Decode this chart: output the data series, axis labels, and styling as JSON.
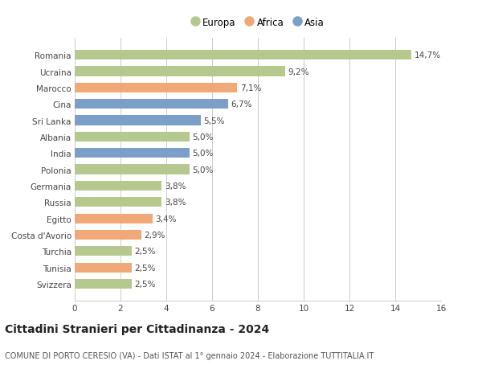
{
  "categories": [
    "Romania",
    "Ucraina",
    "Marocco",
    "Cina",
    "Sri Lanka",
    "Albania",
    "India",
    "Polonia",
    "Germania",
    "Russia",
    "Egitto",
    "Costa d'Avorio",
    "Turchia",
    "Tunisia",
    "Svizzera"
  ],
  "values": [
    14.7,
    9.2,
    7.1,
    6.7,
    5.5,
    5.0,
    5.0,
    5.0,
    3.8,
    3.8,
    3.4,
    2.9,
    2.5,
    2.5,
    2.5
  ],
  "labels": [
    "14,7%",
    "9,2%",
    "7,1%",
    "6,7%",
    "5,5%",
    "5,0%",
    "5,0%",
    "5,0%",
    "3,8%",
    "3,8%",
    "3,4%",
    "2,9%",
    "2,5%",
    "2,5%",
    "2,5%"
  ],
  "continent": [
    "Europa",
    "Europa",
    "Africa",
    "Asia",
    "Asia",
    "Europa",
    "Asia",
    "Europa",
    "Europa",
    "Europa",
    "Africa",
    "Africa",
    "Europa",
    "Africa",
    "Europa"
  ],
  "colors": {
    "Europa": "#b5c98e",
    "Africa": "#f0a878",
    "Asia": "#7b9fc8"
  },
  "xlim": [
    0,
    16
  ],
  "xticks": [
    0,
    2,
    4,
    6,
    8,
    10,
    12,
    14,
    16
  ],
  "title": "Cittadini Stranieri per Cittadinanza - 2024",
  "subtitle": "COMUNE DI PORTO CERESIO (VA) - Dati ISTAT al 1° gennaio 2024 - Elaborazione TUTTITALIA.IT",
  "background_color": "#ffffff",
  "grid_color": "#cccccc",
  "bar_height": 0.6,
  "label_fontsize": 7.5,
  "tick_fontsize": 7.5,
  "title_fontsize": 10,
  "subtitle_fontsize": 7.0
}
